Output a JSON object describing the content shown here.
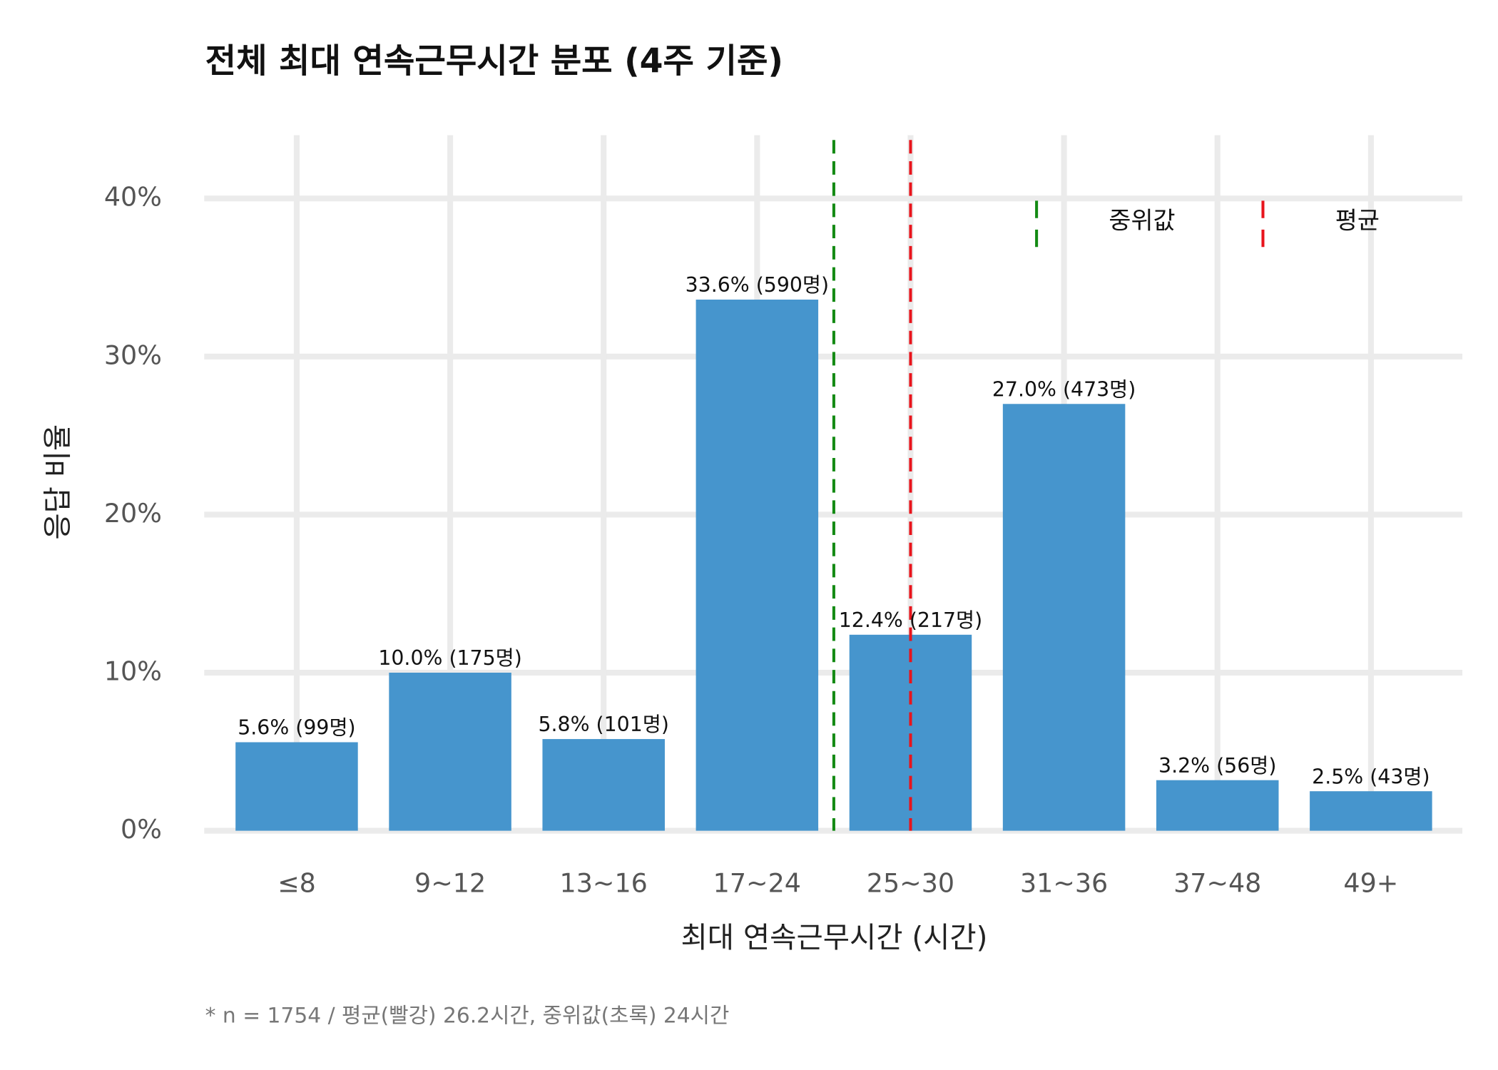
{
  "chart_data": {
    "type": "bar",
    "title": "전체 최대 연속근무시간 분포 (4주 기준)",
    "x_label": "최대 연속근무시간 (시간)",
    "y_label": "응답 비율",
    "footnote": "* n = 1754 / 평균(빨강) 26.2시간, 중위값(초록) 24시간",
    "categories": [
      "≤8",
      "9~12",
      "13~16",
      "17~24",
      "25~30",
      "31~36",
      "37~48",
      "49+"
    ],
    "values": [
      5.6,
      10.0,
      5.8,
      33.6,
      12.4,
      27.0,
      3.2,
      2.5
    ],
    "value_labels": [
      "5.6% (99명)",
      "10.0% (175명)",
      "5.8% (101명)",
      "33.6% (590명)",
      "12.4% (217명)",
      "27.0% (473명)",
      "3.2% (56명)",
      "2.5% (43명)"
    ],
    "color": "#4695cd",
    "ylim": [
      0,
      44
    ],
    "yticks": [
      {
        "value": 0,
        "label": "0%"
      },
      {
        "value": 10,
        "label": "10%"
      },
      {
        "value": 20,
        "label": "20%"
      },
      {
        "value": 30,
        "label": "30%"
      },
      {
        "value": 40,
        "label": "40%"
      }
    ],
    "grid": true,
    "reference_lines": [
      {
        "name": "중위값",
        "color": "#138a13",
        "position": 3.5
      },
      {
        "name": "평균",
        "color": "#e8141c",
        "position": 4
      }
    ],
    "legend_position": "top-right"
  }
}
